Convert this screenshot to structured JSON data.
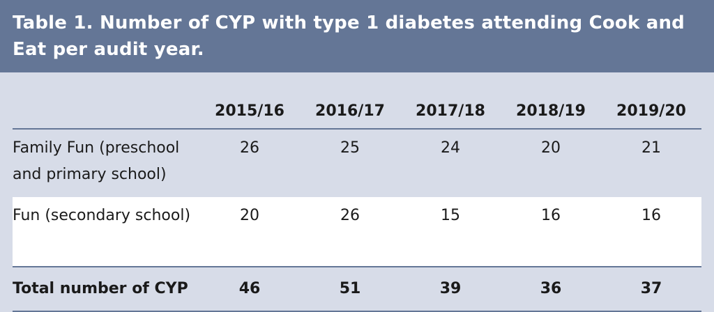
{
  "title": "Table 1. Number of CYP with type 1 diabetes attending Cook and Eat per audit year.",
  "table": {
    "columns": [
      "",
      "2015/16",
      "2016/17",
      "2017/18",
      "2018/19",
      "2019/20"
    ],
    "rows": [
      {
        "label": "Family Fun (preschool and primary school)",
        "values": [
          "26",
          "25",
          "24",
          "20",
          "21"
        ]
      },
      {
        "label": "Fun (secondary school)",
        "values": [
          "20",
          "26",
          "15",
          "16",
          "16"
        ]
      },
      {
        "label": "Total number of CYP",
        "values": [
          "46",
          "51",
          "39",
          "36",
          "37"
        ]
      }
    ]
  },
  "colors": {
    "header_bg": "#647696",
    "table_bg": "#d7dce8",
    "highlight_row_bg": "#ffffff",
    "title_text": "#ffffff"
  }
}
